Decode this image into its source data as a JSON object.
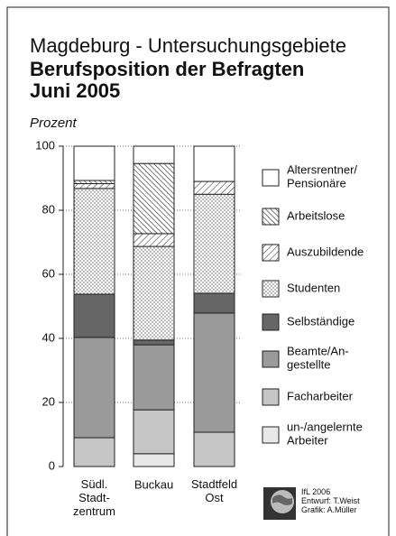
{
  "chart_data": {
    "type": "stacked-bar",
    "title": "Magdeburg - Untersuchungsgebiete",
    "subtitle": "Berufsposition der Befragten\nJuni 2005",
    "y_label": "Prozent",
    "categories": [
      "Südl.\nStadt-\nzentrum",
      "Buckau",
      "Stadtfeld\nOst"
    ],
    "ylim": [
      0,
      100
    ],
    "yticks": [
      0,
      20,
      40,
      60,
      80,
      100
    ],
    "grid": true,
    "series": [
      {
        "name": "un-/angelernte\nArbeiter",
        "color": "#e8e8e8",
        "values": [
          0,
          4,
          0
        ]
      },
      {
        "name": "Facharbeiter",
        "color": "#c6c6c6",
        "values": [
          9,
          13.7,
          10.7
        ]
      },
      {
        "name": "Beamte/An-\ngestellte",
        "color": "#9a9a9a",
        "values": [
          31.3,
          20.3,
          37.2
        ]
      },
      {
        "name": "Selbständige",
        "color": "#666666",
        "values": [
          13.5,
          1.5,
          6.2
        ]
      },
      {
        "name": "Studenten",
        "color": "dots",
        "values": [
          33,
          29.2,
          30.9
        ]
      },
      {
        "name": "Auszubildende",
        "color": "hatch-wide",
        "values": [
          1.5,
          4,
          4
        ]
      },
      {
        "name": "Arbeitslose",
        "color": "hatch-dense",
        "values": [
          1,
          21.9,
          0
        ]
      },
      {
        "name": "Altersrentner/\nPensionäre",
        "color": "#ffffff",
        "values": [
          10.7,
          5.4,
          11
        ]
      }
    ],
    "credits": "IfL 2006\nEntwurf: T.Weist\nGrafik: A.Müller"
  }
}
